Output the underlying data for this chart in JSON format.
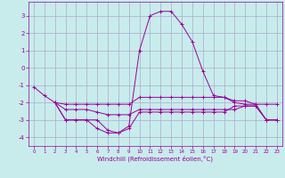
{
  "background_color": "#c8ecec",
  "grid_color": "#aaaacc",
  "line_color": "#990099",
  "xlim": [
    -0.5,
    23.5
  ],
  "ylim": [
    -4.5,
    3.8
  ],
  "xlabel": "Windchill (Refroidissement éolien,°C)",
  "yticks": [
    -4,
    -3,
    -2,
    -1,
    0,
    1,
    2,
    3
  ],
  "xticks": [
    0,
    1,
    2,
    3,
    4,
    5,
    6,
    7,
    8,
    9,
    10,
    11,
    12,
    13,
    14,
    15,
    16,
    17,
    18,
    19,
    20,
    21,
    22,
    23
  ],
  "curve1_x": [
    0,
    1,
    2,
    3,
    4,
    5,
    6,
    7,
    8,
    9,
    10,
    11,
    12,
    13,
    14,
    15,
    16,
    17,
    18,
    19,
    20,
    21,
    22,
    23
  ],
  "curve1_y": [
    -1.1,
    -1.6,
    -2.0,
    -3.0,
    -3.0,
    -3.0,
    -3.5,
    -3.75,
    -3.75,
    -3.35,
    1.0,
    3.0,
    3.25,
    3.25,
    2.5,
    1.5,
    -0.2,
    -1.6,
    -1.7,
    -2.0,
    -2.1,
    -2.1,
    -3.0,
    -3.0
  ],
  "curve2_x": [
    2,
    3,
    4,
    5,
    6,
    7,
    8,
    9,
    10,
    11,
    12,
    13,
    14,
    15,
    16,
    17,
    18,
    19,
    20,
    21,
    22,
    23
  ],
  "curve2_y": [
    -2.0,
    -2.1,
    -2.1,
    -2.1,
    -2.1,
    -2.1,
    -2.1,
    -2.1,
    -1.7,
    -1.7,
    -1.7,
    -1.7,
    -1.7,
    -1.7,
    -1.7,
    -1.7,
    -1.7,
    -1.9,
    -1.9,
    -2.1,
    -2.1,
    -2.1
  ],
  "curve3_x": [
    2,
    3,
    4,
    5,
    6,
    7,
    8,
    9,
    10,
    11,
    12,
    13,
    14,
    15,
    16,
    17,
    18,
    19,
    20,
    21,
    22,
    23
  ],
  "curve3_y": [
    -2.0,
    -2.4,
    -2.4,
    -2.4,
    -2.55,
    -2.7,
    -2.7,
    -2.7,
    -2.4,
    -2.4,
    -2.4,
    -2.4,
    -2.4,
    -2.4,
    -2.4,
    -2.4,
    -2.4,
    -2.4,
    -2.2,
    -2.2,
    -3.0,
    -3.0
  ],
  "curve4_x": [
    2,
    3,
    4,
    5,
    6,
    7,
    8,
    9,
    10,
    11,
    12,
    13,
    14,
    15,
    16,
    17,
    18,
    19,
    20,
    21,
    22,
    23
  ],
  "curve4_y": [
    -2.0,
    -3.0,
    -3.0,
    -3.0,
    -3.0,
    -3.6,
    -3.75,
    -3.5,
    -2.55,
    -2.55,
    -2.55,
    -2.55,
    -2.55,
    -2.55,
    -2.55,
    -2.55,
    -2.55,
    -2.2,
    -2.2,
    -2.2,
    -3.0,
    -3.0
  ]
}
